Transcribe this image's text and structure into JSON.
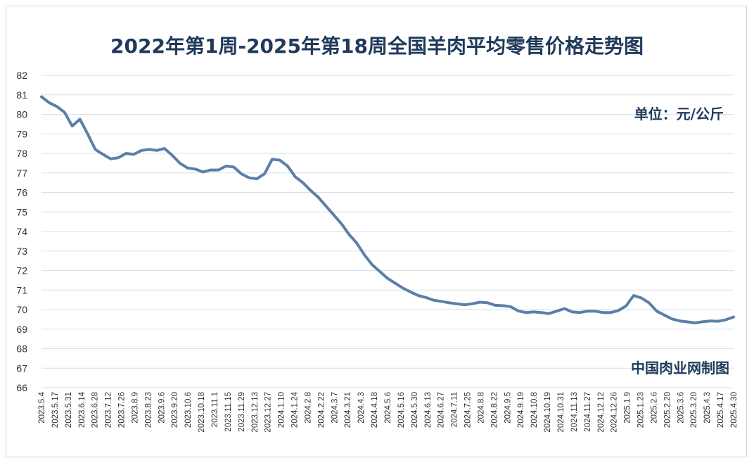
{
  "chart_data": {
    "type": "line",
    "title": "2022年第1周-2025年第18周全国羊肉平均零售价格走势图",
    "unit_note": "单位：元/公斤",
    "source_note": "中国肉业网制图",
    "ylim": [
      66,
      82
    ],
    "yticks": [
      66,
      67,
      68,
      69,
      70,
      71,
      72,
      73,
      74,
      75,
      76,
      77,
      78,
      79,
      80,
      81,
      82
    ],
    "grid": true,
    "line_color": "#5b7fa8",
    "x_tick_labels": [
      "2023.5.4",
      "2023.5.17",
      "2023.5.31",
      "2023.6.14",
      "2023.6.28",
      "2023.7.12",
      "2023.7.26",
      "2023.8.9",
      "2023.8.23",
      "2023.9.6",
      "2023.9.20",
      "2023.10.6",
      "2023.10.18",
      "2023.11.1",
      "2023.11.15",
      "2023.11.29",
      "2023.12.13",
      "2023.12.27",
      "2024.1.10",
      "2024.1.24",
      "2024.2.8",
      "2024.2.22",
      "2024.3.7",
      "2024.3.21",
      "2024.4.3",
      "2024.4.18",
      "2024.5.6",
      "2024.5.16",
      "2024.5.30",
      "2024.6.13",
      "2024.6.27",
      "2024.7.11",
      "2024.7.25",
      "2024.8.8",
      "2024.8.22",
      "2024.9.5",
      "2024.9.19",
      "2024.10.8",
      "2024.10.19",
      "2024.10.31",
      "2024.11.13",
      "2024.11.27",
      "2024.12.12",
      "2024.12.26",
      "2025.1.9",
      "2025.1.23",
      "2025.2.6",
      "2025.2.20",
      "2025.3.6",
      "2025.3.20",
      "2025.4.3",
      "2025.4.17",
      "2025.4.30"
    ],
    "values": [
      80.9,
      80.6,
      80.4,
      80.1,
      79.4,
      79.75,
      79.0,
      78.2,
      77.95,
      77.72,
      77.78,
      78.0,
      77.95,
      78.15,
      78.2,
      78.15,
      78.25,
      77.9,
      77.5,
      77.25,
      77.2,
      77.05,
      77.15,
      77.15,
      77.35,
      77.3,
      76.95,
      76.75,
      76.7,
      76.95,
      77.7,
      77.65,
      77.35,
      76.8,
      76.5,
      76.1,
      75.75,
      75.3,
      74.85,
      74.4,
      73.85,
      73.4,
      72.8,
      72.3,
      71.95,
      71.6,
      71.35,
      71.1,
      70.9,
      70.72,
      70.62,
      70.48,
      70.42,
      70.35,
      70.3,
      70.25,
      70.3,
      70.38,
      70.35,
      70.22,
      70.2,
      70.15,
      69.93,
      69.85,
      69.88,
      69.85,
      69.8,
      69.92,
      70.05,
      69.88,
      69.85,
      69.92,
      69.92,
      69.85,
      69.85,
      69.95,
      70.18,
      70.72,
      70.6,
      70.35,
      69.92,
      69.72,
      69.52,
      69.42,
      69.37,
      69.32,
      69.38,
      69.42,
      69.4,
      69.48,
      69.62
    ]
  }
}
